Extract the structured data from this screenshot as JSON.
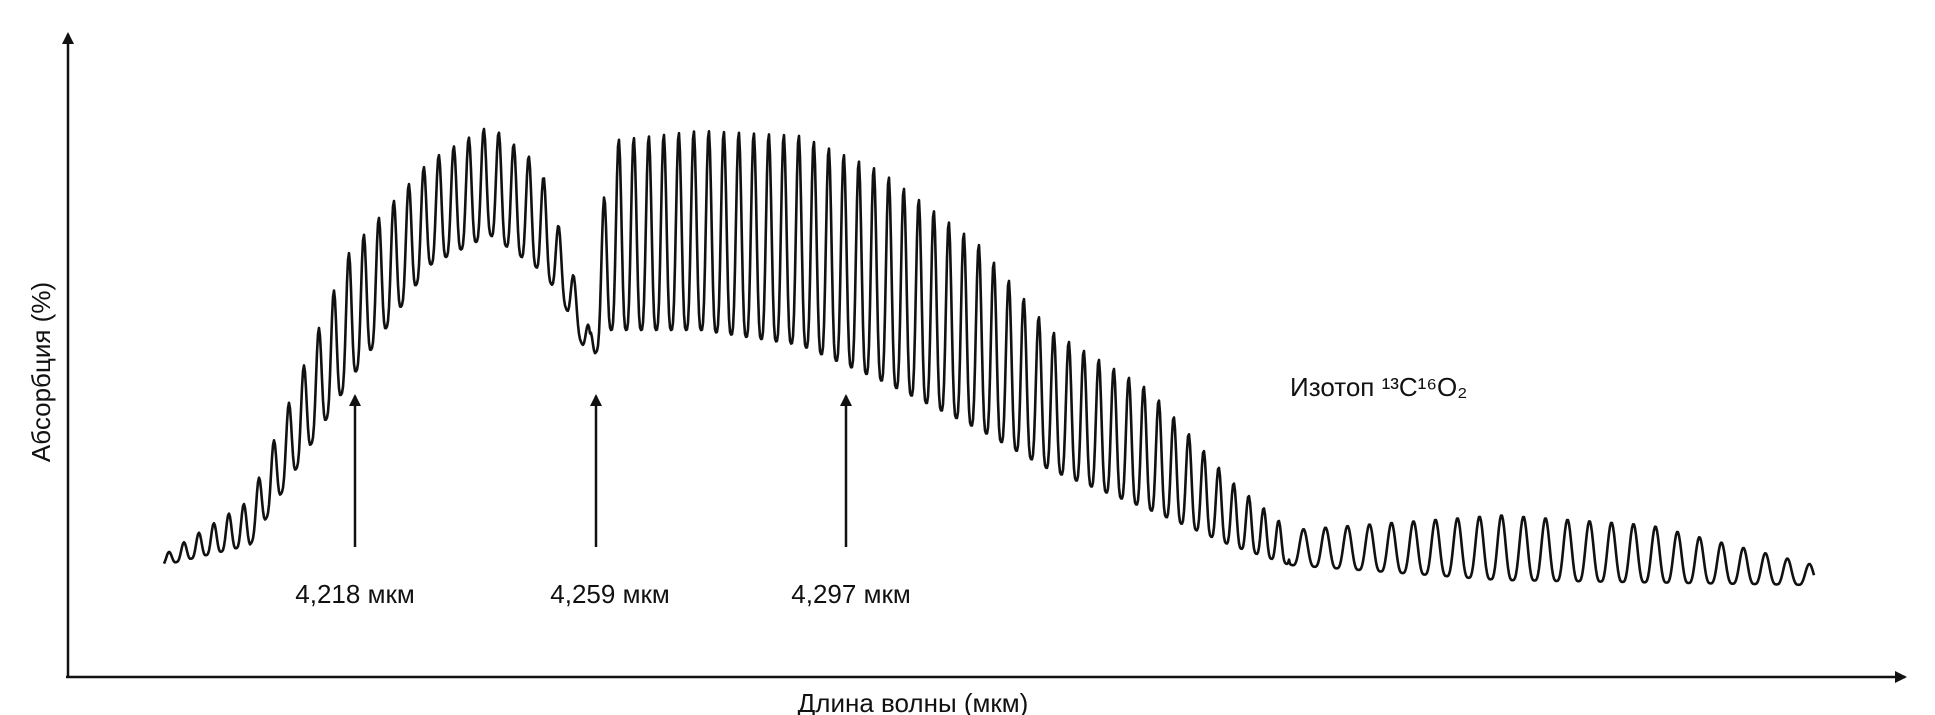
{
  "chart_data": {
    "type": "line",
    "y_label": "Абсорбция (%)",
    "x_label": "Длина волны (мкм)",
    "annotations": [
      "4,218 мкм",
      "4,259 мкм",
      "4,297 мкм"
    ],
    "series_label": "Изотоп ¹³C¹⁶O₂"
  }
}
